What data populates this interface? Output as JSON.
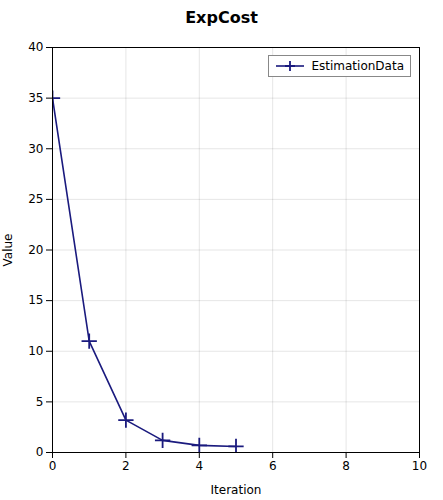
{
  "chart_data": {
    "type": "line",
    "title": "ExpCost",
    "xlabel": "Iteration",
    "ylabel": "Value",
    "x": [
      0,
      1,
      2,
      3,
      4,
      5
    ],
    "series": [
      {
        "name": "EstimationData",
        "color": "#1a1a7e",
        "marker": "plus",
        "line_style": "solid",
        "values": [
          35,
          11,
          3.2,
          1.2,
          0.7,
          0.6
        ]
      }
    ],
    "xlim": [
      0,
      10
    ],
    "xticks": [
      0,
      2,
      4,
      6,
      8,
      10
    ],
    "ylim": [
      0,
      40
    ],
    "yticks": [
      0,
      5,
      10,
      15,
      20,
      25,
      30,
      35,
      40
    ],
    "grid": true,
    "legend": "upper right"
  }
}
